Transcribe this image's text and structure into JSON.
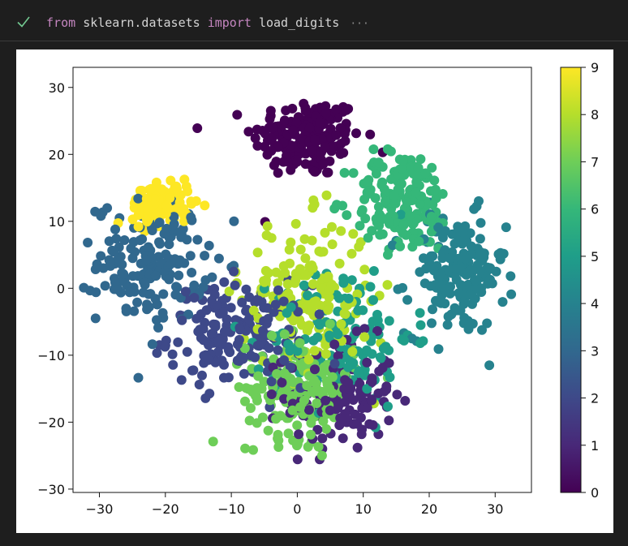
{
  "cell": {
    "status_icon": "check-icon",
    "status_color": "#73c991",
    "code_tokens": [
      "from",
      "sklearn.datasets",
      "import",
      "load_digits"
    ],
    "more_icon": "ellipsis-icon",
    "more_label": "···"
  },
  "chart_data": {
    "type": "scatter",
    "xlim": [
      -34,
      35.5
    ],
    "ylim": [
      -30.5,
      33
    ],
    "x_ticks": [
      -30,
      -20,
      -10,
      0,
      10,
      20,
      30
    ],
    "y_ticks": [
      -30,
      -20,
      -10,
      0,
      10,
      20,
      30
    ],
    "x_tick_labels": [
      "−30",
      "−20",
      "−10",
      "0",
      "10",
      "20",
      "30"
    ],
    "y_tick_labels": [
      "−30",
      "−20",
      "−10",
      "0",
      "10",
      "20",
      "30"
    ],
    "grid": false,
    "colorbar": {
      "colormap": "viridis",
      "range": [
        0,
        9
      ],
      "ticks": [
        0,
        1,
        2,
        3,
        4,
        5,
        6,
        7,
        8,
        9
      ],
      "tick_labels": [
        "0",
        "1",
        "2",
        "3",
        "4",
        "5",
        "6",
        "7",
        "8",
        "9"
      ]
    },
    "clusters": [
      {
        "label": 0,
        "color": "#440154",
        "center": [
          1.5,
          22.5
        ],
        "spread": [
          5.5,
          4.0
        ],
        "count": 180
      },
      {
        "label": 1,
        "color": "#482878",
        "center": [
          6.5,
          -16
        ],
        "spread": [
          5.5,
          5.5
        ],
        "count": 140
      },
      {
        "label": 2,
        "color": "#3e4989",
        "center": [
          -9,
          -7
        ],
        "spread": [
          7.0,
          5.0
        ],
        "count": 180
      },
      {
        "label": 3,
        "color": "#31688e",
        "center": [
          -22,
          4
        ],
        "spread": [
          5.5,
          6.0
        ],
        "count": 170
      },
      {
        "label": 4,
        "color": "#26828e",
        "center": [
          24,
          2
        ],
        "spread": [
          5.0,
          6.0
        ],
        "count": 170
      },
      {
        "label": 5,
        "color": "#1f9e89",
        "center": [
          7,
          -7
        ],
        "spread": [
          7.0,
          7.0
        ],
        "count": 140
      },
      {
        "label": 6,
        "color": "#35b779",
        "center": [
          16,
          13
        ],
        "spread": [
          5.0,
          5.0
        ],
        "count": 170
      },
      {
        "label": 7,
        "color": "#6ece58",
        "center": [
          0.5,
          -15
        ],
        "spread": [
          5.5,
          5.0
        ],
        "count": 180
      },
      {
        "label": 8,
        "color": "#b5de2b",
        "center": [
          1.5,
          -1
        ],
        "spread": [
          6.5,
          7.5
        ],
        "count": 170
      },
      {
        "label": 9,
        "color": "#fde725",
        "center": [
          -20.5,
          12.5
        ],
        "spread": [
          3.0,
          2.0
        ],
        "count": 140
      }
    ]
  }
}
